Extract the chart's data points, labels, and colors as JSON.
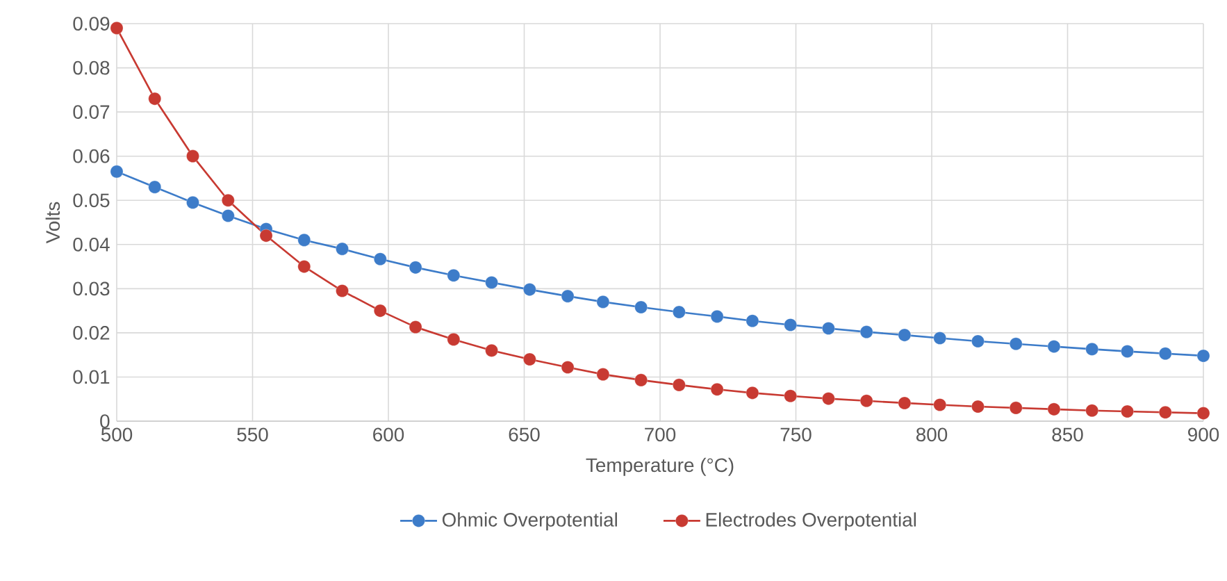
{
  "chart_data": {
    "type": "line",
    "xlabel": "Temperature (°C)",
    "ylabel": "Volts",
    "x": [
      500,
      514,
      528,
      541,
      555,
      569,
      583,
      597,
      610,
      624,
      638,
      652,
      666,
      679,
      693,
      707,
      721,
      734,
      748,
      762,
      776,
      790,
      803,
      817,
      831,
      845,
      859,
      872,
      886,
      900
    ],
    "series": [
      {
        "name": "Ohmic Overpotential",
        "color": "#3d7cc9",
        "values": [
          0.0565,
          0.053,
          0.0495,
          0.0465,
          0.0435,
          0.041,
          0.039,
          0.0367,
          0.0348,
          0.033,
          0.0314,
          0.0298,
          0.0283,
          0.027,
          0.0258,
          0.0247,
          0.0237,
          0.0227,
          0.0218,
          0.021,
          0.0202,
          0.0195,
          0.0188,
          0.0181,
          0.0175,
          0.0169,
          0.0163,
          0.0158,
          0.0153,
          0.0148
        ]
      },
      {
        "name": "Electrodes Overpotential",
        "color": "#c83a32",
        "values": [
          0.089,
          0.073,
          0.06,
          0.05,
          0.042,
          0.035,
          0.0295,
          0.025,
          0.0213,
          0.0185,
          0.016,
          0.014,
          0.0122,
          0.0106,
          0.0093,
          0.0082,
          0.0072,
          0.0064,
          0.0057,
          0.0051,
          0.0046,
          0.0041,
          0.0037,
          0.0033,
          0.003,
          0.0027,
          0.0024,
          0.0022,
          0.002,
          0.0018
        ]
      }
    ],
    "xlim": [
      500,
      900
    ],
    "xticks": [
      500,
      550,
      600,
      650,
      700,
      750,
      800,
      850,
      900
    ],
    "ylim": [
      0,
      0.09
    ],
    "yticks": [
      0,
      0.01,
      0.02,
      0.03,
      0.04,
      0.05,
      0.06,
      0.07,
      0.08,
      0.09
    ],
    "grid": true,
    "legend": "bottom",
    "marker": "circle",
    "line_style": "solid"
  }
}
